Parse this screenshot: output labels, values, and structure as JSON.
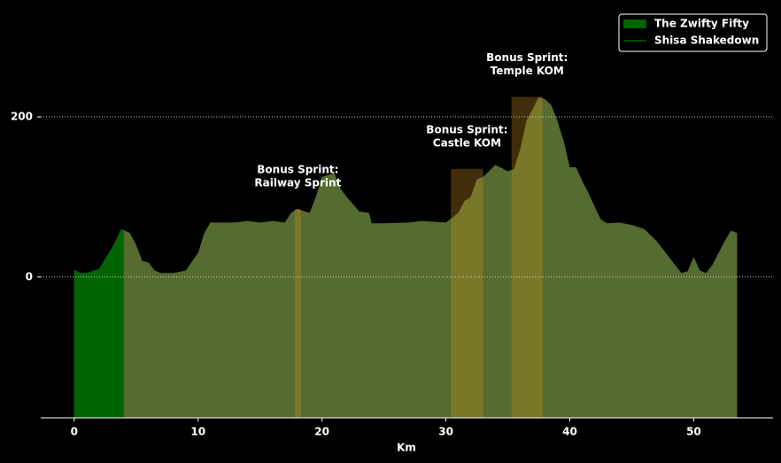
{
  "chart_data": {
    "type": "area",
    "xlabel": "Km",
    "xlim": [
      -2.7,
      56.4
    ],
    "ylim": [
      -176,
      335
    ],
    "xticks": [
      0,
      10,
      20,
      30,
      40,
      50
    ],
    "yticks": [
      0,
      200
    ],
    "grid": true,
    "legend": "upper right",
    "series": [
      {
        "name": "Shisa Shakedown",
        "color": "#556b2f",
        "line_color": "#006400",
        "x": [
          0,
          0.5,
          1,
          2,
          3,
          3.5,
          3.8,
          4.5,
          5,
          5.5,
          6,
          6.5,
          7,
          8,
          9,
          10,
          10.5,
          11,
          12,
          13,
          14,
          15,
          16,
          17,
          17.5,
          18,
          19,
          19.5,
          20,
          21,
          21.5,
          22,
          23,
          23.8,
          24,
          25,
          27,
          28,
          30,
          31,
          31.5,
          32,
          32.5,
          33,
          34,
          35,
          35.5,
          36,
          36.5,
          37,
          37.5,
          38,
          38.5,
          39,
          39.5,
          40,
          40.5,
          41,
          41.5,
          42,
          42.5,
          43,
          44,
          45,
          46,
          47,
          47.5,
          48,
          49,
          49.5,
          50,
          50.5,
          51,
          51.5,
          52,
          52.5,
          53,
          53.5
        ],
        "values": [
          9,
          5,
          5,
          10,
          35,
          50,
          60,
          55,
          40,
          20,
          18,
          8,
          5,
          5,
          8,
          30,
          55,
          68,
          68,
          68,
          70,
          68,
          70,
          68,
          80,
          85,
          80,
          100,
          125,
          130,
          110,
          100,
          82,
          80,
          67,
          67,
          68,
          70,
          68,
          80,
          95,
          100,
          122,
          125,
          140,
          132,
          135,
          160,
          195,
          210,
          225,
          222,
          215,
          195,
          170,
          137,
          137,
          120,
          105,
          88,
          72,
          67,
          68,
          65,
          60,
          45,
          35,
          25,
          5,
          7,
          25,
          8,
          5,
          15,
          30,
          45,
          58,
          55
        ]
      },
      {
        "name": "The Zwifty Fifty",
        "color": "#006400",
        "x": [
          0,
          0.5,
          1,
          2,
          3,
          3.5,
          3.8,
          4
        ],
        "values": [
          9,
          5,
          5,
          10,
          35,
          50,
          60,
          58
        ]
      }
    ],
    "zones": [
      {
        "lines": [
          "Bonus Sprint:",
          "Railway Sprint"
        ],
        "start": 17.8,
        "end": 18.3,
        "top": 85
      },
      {
        "lines": [
          "Bonus Sprint:",
          "Castle KOM"
        ],
        "start": 30.4,
        "end": 33.0,
        "top": 135
      },
      {
        "lines": [
          "Bonus Sprint:",
          "Temple KOM"
        ],
        "start": 35.3,
        "end": 37.8,
        "top": 225
      }
    ],
    "zone_color": "#d4961e"
  }
}
